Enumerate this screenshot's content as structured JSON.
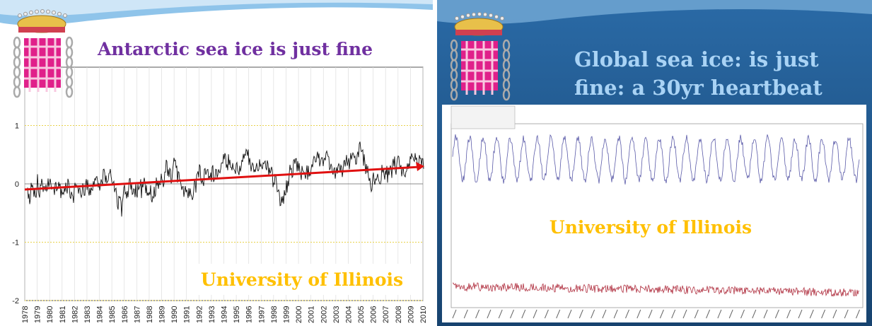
{
  "slides": [
    {
      "title": "Antarctic sea ice is just fine",
      "watermark": "University of Illinois",
      "chart": {
        "ylim": [
          -2,
          2
        ],
        "yticks": [
          1,
          0,
          -1,
          -2
        ],
        "xticks": [
          "1978",
          "1979",
          "1980",
          "1981",
          "1982",
          "1983",
          "1984",
          "1985",
          "1986",
          "1987",
          "1988",
          "1989",
          "1990",
          "1991",
          "1992",
          "1993",
          "1994",
          "1995",
          "1996",
          "1997",
          "1998",
          "1999",
          "2000",
          "2001",
          "2002",
          "2003",
          "2004",
          "2005",
          "2006",
          "2007",
          "2008",
          "2009",
          "2010"
        ]
      }
    },
    {
      "title_lines": [
        "Global sea ice: is just",
        "fine: a 30yr heartbeat"
      ],
      "watermark": "University of Illinois"
    }
  ]
}
